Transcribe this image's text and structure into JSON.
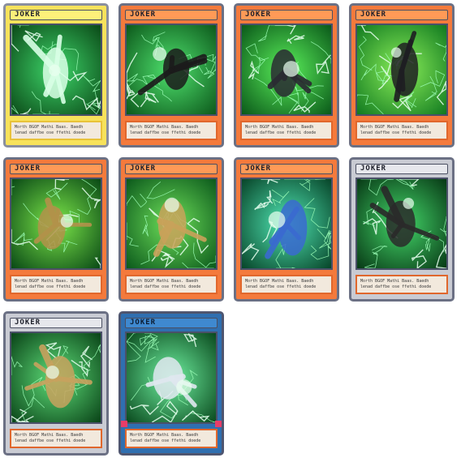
{
  "cards": [
    {
      "title": "JOKER",
      "frame": "yellow",
      "text_line1": "Morth BGOF Mathi Baas. Baedh",
      "text_line2": "lenad daffbe ose ffethi doede",
      "palette": [
        "#0b4a18",
        "#3ed66a",
        "#d9ffe6"
      ]
    },
    {
      "title": "JOKER",
      "frame": "orange",
      "text_line1": "Morth BGOF Mathi Baas. Baedh",
      "text_line2": "lenad daffbe ose ffethi doede",
      "palette": [
        "#0d5a1c",
        "#4fe26e",
        "#1b1b1b"
      ]
    },
    {
      "title": "JOKER",
      "frame": "orange",
      "text_line1": "Morth BGOF Mathi Baas. Baedh",
      "text_line2": "lenad daffbe ose ffethi doede",
      "palette": [
        "#0b5a1a",
        "#5aef5a",
        "#2a2a32"
      ]
    },
    {
      "title": "JOKER",
      "frame": "orange",
      "text_line1": "Morth BGOF Mathi Baas. Baedh",
      "text_line2": "lenad daffbe ose ffethi doede",
      "palette": [
        "#117a20",
        "#8cf05a",
        "#1e1e22"
      ]
    },
    {
      "title": "JOKER",
      "frame": "orange",
      "text_line1": "Morth BGOF Mathi Baas. Baedh",
      "text_line2": "lenad daffbe ose ffethi doede",
      "palette": [
        "#0a4a16",
        "#7de84a",
        "#b3924a"
      ]
    },
    {
      "title": "JOKER",
      "frame": "orange",
      "text_line1": "Morth BGOF Mathi Baas. Baedh",
      "text_line2": "lenad daffbe ose ffethi doede",
      "palette": [
        "#0c5a1c",
        "#6ee05a",
        "#c9a25a"
      ]
    },
    {
      "title": "JOKER",
      "frame": "orange",
      "text_line1": "Morth BGOF Mathi Baas. Baedh",
      "text_line2": "lenad daffbe ose ffethi doede",
      "palette": [
        "#08462a",
        "#50e6b4",
        "#3a6ad0"
      ]
    },
    {
      "title": "JOKER",
      "frame": "gray",
      "text_line1": "Morth BGOF Mathi Baas. Baedh",
      "text_line2": "lenad daffbe ose ffethi doede",
      "palette": [
        "#083a16",
        "#44d86a",
        "#2a2a2a"
      ]
    },
    {
      "title": "JOKER",
      "frame": "gray",
      "text_line1": "Morth BGOF Mathi Baas. Baedh",
      "text_line2": "lenad daffbe ose ffethi doede",
      "palette": [
        "#0a4418",
        "#5fe07a",
        "#c8a25e"
      ]
    },
    {
      "title": "JOKER",
      "frame": "blue",
      "text_line1": "Morth BGOF Mathi Baas. Baedh",
      "text_line2": "lenad daffbe ose ffethi doede",
      "palette": [
        "#0a4a1e",
        "#6ff0a0",
        "#e0e8f0"
      ]
    }
  ]
}
